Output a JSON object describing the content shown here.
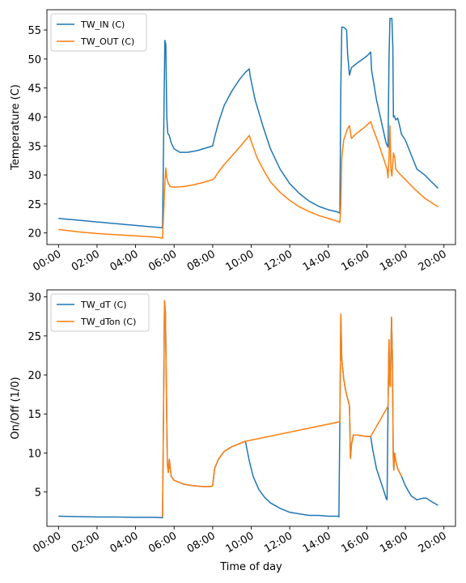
{
  "colors": {
    "blue": "#1f77b4",
    "orange": "#ff7f0e"
  },
  "chart_data": [
    {
      "type": "line",
      "ylabel": "Temperature (C)",
      "xlabel": "",
      "xlim": [
        -0.6,
        20.6
      ],
      "ylim": [
        18,
        58.5
      ],
      "yticks": [
        20,
        25,
        30,
        35,
        40,
        45,
        50,
        55
      ],
      "xticks": [
        0,
        2,
        4,
        6,
        8,
        10,
        12,
        14,
        16,
        18,
        20
      ],
      "xtick_labels": [
        "00:00",
        "02:00",
        "04:00",
        "06:00",
        "08:00",
        "10:00",
        "12:00",
        "14:00",
        "16:00",
        "18:00",
        "20:00"
      ],
      "legend": {
        "position": "top-left"
      },
      "series": [
        {
          "name": "TW_IN (C)",
          "color_key": "blue",
          "points": [
            [
              0,
              22.5
            ],
            [
              1,
              22.2
            ],
            [
              2,
              21.9
            ],
            [
              3,
              21.6
            ],
            [
              4,
              21.3
            ],
            [
              5,
              21.0
            ],
            [
              5.4,
              20.9
            ],
            [
              5.47,
              40
            ],
            [
              5.52,
              53.2
            ],
            [
              5.57,
              52.5
            ],
            [
              5.62,
              40
            ],
            [
              5.67,
              37.2
            ],
            [
              5.75,
              36.8
            ],
            [
              5.85,
              35.5
            ],
            [
              6,
              34.5
            ],
            [
              6.3,
              33.9
            ],
            [
              6.7,
              33.9
            ],
            [
              7.2,
              34.2
            ],
            [
              7.6,
              34.6
            ],
            [
              8,
              35.0
            ],
            [
              8.1,
              36.5
            ],
            [
              8.3,
              39.0
            ],
            [
              8.6,
              42.0
            ],
            [
              9,
              44.5
            ],
            [
              9.4,
              46.5
            ],
            [
              9.7,
              47.7
            ],
            [
              9.9,
              48.3
            ],
            [
              9.95,
              47.0
            ],
            [
              10.2,
              43.0
            ],
            [
              10.6,
              38.5
            ],
            [
              11,
              34.5
            ],
            [
              11.5,
              31.0
            ],
            [
              12,
              28.5
            ],
            [
              12.5,
              26.8
            ],
            [
              13,
              25.5
            ],
            [
              13.5,
              24.6
            ],
            [
              14,
              24.0
            ],
            [
              14.5,
              23.6
            ],
            [
              14.6,
              23.4
            ],
            [
              14.65,
              45
            ],
            [
              14.7,
              55.5
            ],
            [
              14.8,
              55.5
            ],
            [
              14.95,
              55.0
            ],
            [
              15,
              51.0
            ],
            [
              15.1,
              47.2
            ],
            [
              15.2,
              48.5
            ],
            [
              15.5,
              49.3
            ],
            [
              16,
              50.5
            ],
            [
              16.2,
              51.2
            ],
            [
              16.25,
              48
            ],
            [
              16.5,
              43.0
            ],
            [
              16.8,
              38.5
            ],
            [
              17.0,
              35.5
            ],
            [
              17.1,
              34.8
            ],
            [
              17.15,
              50
            ],
            [
              17.2,
              57.0
            ],
            [
              17.3,
              57.0
            ],
            [
              17.35,
              52
            ],
            [
              17.38,
              40
            ],
            [
              17.42,
              40.2
            ],
            [
              17.5,
              39.5
            ],
            [
              17.6,
              39.8
            ],
            [
              17.7,
              38.5
            ],
            [
              17.8,
              37.0
            ],
            [
              18,
              36.0
            ],
            [
              18.3,
              33.5
            ],
            [
              18.6,
              31.0
            ],
            [
              19,
              30.0
            ],
            [
              19.3,
              29.0
            ],
            [
              19.7,
              27.7
            ]
          ]
        },
        {
          "name": "TW_OUT (C)",
          "color_key": "orange",
          "points": [
            [
              0,
              20.6
            ],
            [
              1,
              20.2
            ],
            [
              2,
              19.9
            ],
            [
              3,
              19.7
            ],
            [
              4,
              19.5
            ],
            [
              5,
              19.3
            ],
            [
              5.4,
              19.1
            ],
            [
              5.45,
              23
            ],
            [
              5.52,
              28.5
            ],
            [
              5.57,
              31.2
            ],
            [
              5.62,
              29.5
            ],
            [
              5.7,
              28.5
            ],
            [
              5.8,
              28.0
            ],
            [
              6,
              27.9
            ],
            [
              6.5,
              28.0
            ],
            [
              7,
              28.3
            ],
            [
              7.5,
              28.7
            ],
            [
              8,
              29.2
            ],
            [
              8.1,
              29.5
            ],
            [
              8.3,
              30.5
            ],
            [
              8.6,
              31.8
            ],
            [
              9,
              33.3
            ],
            [
              9.4,
              34.8
            ],
            [
              9.7,
              36.0
            ],
            [
              9.9,
              36.8
            ],
            [
              10,
              35.8
            ],
            [
              10.3,
              33.0
            ],
            [
              10.7,
              30.5
            ],
            [
              11,
              28.8
            ],
            [
              11.5,
              27.0
            ],
            [
              12,
              25.6
            ],
            [
              12.5,
              24.5
            ],
            [
              13,
              23.7
            ],
            [
              13.5,
              23.0
            ],
            [
              14,
              22.5
            ],
            [
              14.5,
              22.0
            ],
            [
              14.6,
              21.8
            ],
            [
              14.65,
              25
            ],
            [
              14.7,
              33
            ],
            [
              14.8,
              36.0
            ],
            [
              15,
              38.0
            ],
            [
              15.1,
              38.5
            ],
            [
              15.2,
              36.3
            ],
            [
              15.4,
              37.0
            ],
            [
              15.8,
              38.0
            ],
            [
              16.2,
              39.2
            ],
            [
              16.3,
              38.2
            ],
            [
              16.6,
              35.5
            ],
            [
              16.9,
              32.5
            ],
            [
              17.05,
              31.0
            ],
            [
              17.1,
              29.5
            ],
            [
              17.15,
              33
            ],
            [
              17.2,
              38.5
            ],
            [
              17.25,
              31.0
            ],
            [
              17.3,
              29.8
            ],
            [
              17.38,
              33.8
            ],
            [
              17.45,
              33.0
            ],
            [
              17.5,
              31.0
            ],
            [
              17.7,
              30.2
            ],
            [
              18,
              29.2
            ],
            [
              18.5,
              27.5
            ],
            [
              19,
              26.0
            ],
            [
              19.7,
              24.5
            ]
          ]
        }
      ]
    },
    {
      "type": "line",
      "ylabel": "On/Off (1/0)",
      "xlabel": "Time of day",
      "xlim": [
        -0.6,
        20.6
      ],
      "ylim": [
        0.6,
        30.9
      ],
      "yticks": [
        5,
        10,
        15,
        20,
        25,
        30
      ],
      "xticks": [
        0,
        2,
        4,
        6,
        8,
        10,
        12,
        14,
        16,
        18,
        20
      ],
      "xtick_labels": [
        "00:00",
        "02:00",
        "04:00",
        "06:00",
        "08:00",
        "10:00",
        "12:00",
        "14:00",
        "16:00",
        "18:00",
        "20:00"
      ],
      "legend": {
        "position": "top-left"
      },
      "series": [
        {
          "name": "TW_dT (C)",
          "color_key": "blue",
          "points": [
            [
              0,
              1.9
            ],
            [
              1,
              1.85
            ],
            [
              2,
              1.8
            ],
            [
              3,
              1.8
            ],
            [
              4,
              1.75
            ],
            [
              5,
              1.75
            ],
            [
              5.4,
              1.7
            ],
            [
              5.45,
              15
            ],
            [
              5.5,
              29.5
            ],
            [
              5.55,
              28
            ],
            [
              5.6,
              18
            ],
            [
              5.65,
              8.5
            ],
            [
              5.7,
              7.5
            ],
            [
              5.75,
              9.2
            ],
            [
              5.85,
              7.0
            ],
            [
              6,
              6.5
            ],
            [
              6.5,
              6.0
            ],
            [
              7,
              5.8
            ],
            [
              7.5,
              5.7
            ],
            [
              7.9,
              5.7
            ],
            [
              8.0,
              5.8
            ],
            [
              8.1,
              8.0
            ],
            [
              8.3,
              9.2
            ],
            [
              8.6,
              10.2
            ],
            [
              9,
              10.8
            ],
            [
              9.5,
              11.3
            ],
            [
              9.7,
              11.5
            ],
            [
              9.9,
              9.0
            ],
            [
              10.1,
              7.0
            ],
            [
              10.4,
              5.3
            ],
            [
              10.7,
              4.3
            ],
            [
              11,
              3.6
            ],
            [
              11.5,
              2.9
            ],
            [
              12,
              2.4
            ],
            [
              12.5,
              2.2
            ],
            [
              13,
              2.0
            ],
            [
              13.5,
              2.0
            ],
            [
              14,
              1.9
            ],
            [
              14.5,
              1.9
            ],
            [
              14.55,
              1.8
            ],
            [
              14.6,
              14
            ],
            [
              14.65,
              27.8
            ],
            [
              14.7,
              22
            ],
            [
              14.8,
              19.5
            ],
            [
              14.9,
              18.0
            ],
            [
              15,
              17.0
            ],
            [
              15.1,
              16.0
            ],
            [
              15.15,
              9.3
            ],
            [
              15.2,
              11.0
            ],
            [
              15.3,
              12.3
            ],
            [
              15.5,
              12.3
            ],
            [
              16,
              12.1
            ],
            [
              16.2,
              12.1
            ],
            [
              16.3,
              10.5
            ],
            [
              16.5,
              8.0
            ],
            [
              16.7,
              6.5
            ],
            [
              16.9,
              5.0
            ],
            [
              17.0,
              4.2
            ],
            [
              17.05,
              4.0
            ],
            [
              17.1,
              16
            ],
            [
              17.15,
              24.5
            ],
            [
              17.18,
              19
            ],
            [
              17.22,
              18.5
            ],
            [
              17.28,
              27.4
            ],
            [
              17.33,
              22
            ],
            [
              17.37,
              9.5
            ],
            [
              17.4,
              7.8
            ],
            [
              17.45,
              10.0
            ],
            [
              17.5,
              9.0
            ],
            [
              17.6,
              8.0
            ],
            [
              17.8,
              7.0
            ],
            [
              18,
              5.8
            ],
            [
              18.3,
              4.5
            ],
            [
              18.6,
              4.0
            ],
            [
              18.9,
              4.2
            ],
            [
              19.1,
              4.2
            ],
            [
              19.4,
              3.7
            ],
            [
              19.7,
              3.3
            ]
          ]
        },
        {
          "name": "TW_dTon (C)",
          "color_key": "orange",
          "points": [
            [
              5.4,
              1.75
            ],
            [
              5.45,
              15
            ],
            [
              5.5,
              29.5
            ],
            [
              5.55,
              28
            ],
            [
              5.6,
              18
            ],
            [
              5.65,
              8.5
            ],
            [
              5.7,
              7.5
            ],
            [
              5.75,
              9.2
            ],
            [
              5.85,
              7.0
            ],
            [
              6,
              6.5
            ],
            [
              6.5,
              6.0
            ],
            [
              7,
              5.8
            ],
            [
              7.5,
              5.7
            ],
            [
              7.9,
              5.7
            ],
            [
              8.0,
              5.8
            ],
            [
              8.1,
              8.0
            ],
            [
              8.3,
              9.2
            ],
            [
              8.6,
              10.2
            ],
            [
              9,
              10.8
            ],
            [
              9.5,
              11.3
            ],
            [
              9.7,
              11.5
            ],
            [
              14.6,
              14
            ],
            [
              14.65,
              27.8
            ],
            [
              14.7,
              22
            ],
            [
              14.8,
              19.5
            ],
            [
              14.9,
              18.0
            ],
            [
              15,
              17.0
            ],
            [
              15.1,
              16.0
            ],
            [
              15.15,
              9.3
            ],
            [
              15.2,
              11.0
            ],
            [
              15.3,
              12.3
            ],
            [
              15.5,
              12.3
            ],
            [
              16,
              12.1
            ],
            [
              16.2,
              12.1
            ],
            [
              17.1,
              16
            ],
            [
              17.15,
              24.5
            ],
            [
              17.18,
              19
            ],
            [
              17.22,
              18.5
            ],
            [
              17.28,
              27.4
            ],
            [
              17.33,
              22
            ],
            [
              17.37,
              9.5
            ],
            [
              17.4,
              7.8
            ],
            [
              17.45,
              10.0
            ],
            [
              17.5,
              9.0
            ],
            [
              17.6,
              8.0
            ],
            [
              17.8,
              7.0
            ]
          ]
        }
      ]
    }
  ]
}
